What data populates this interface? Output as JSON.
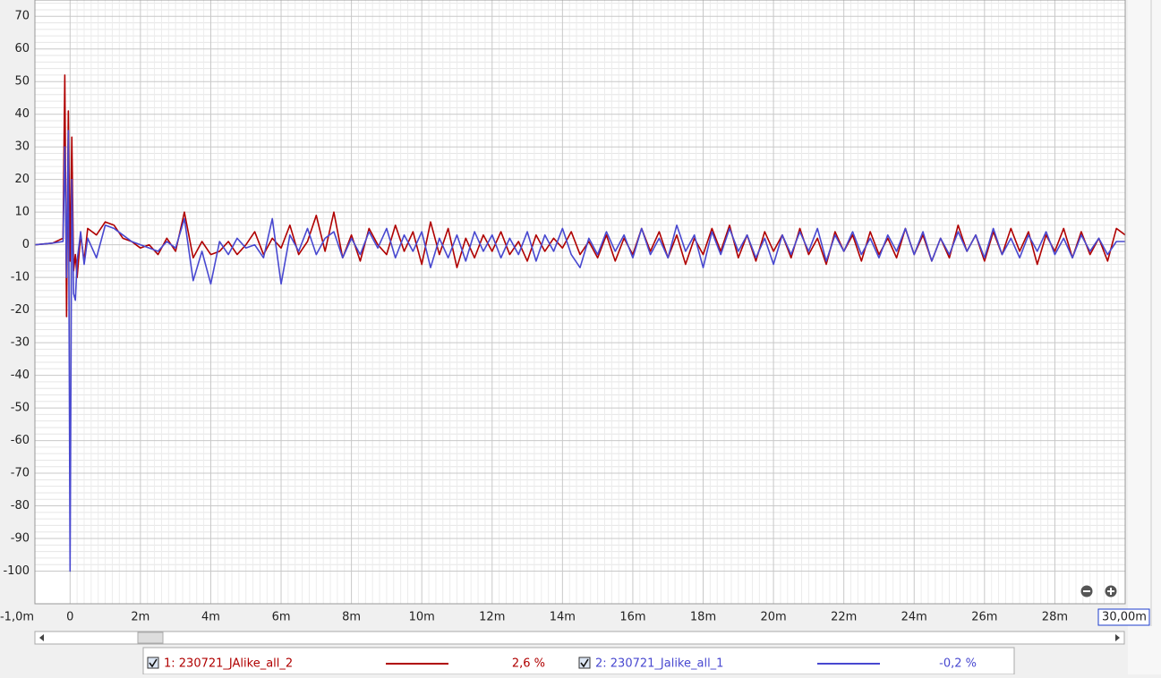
{
  "chart_data": {
    "type": "line",
    "x": [
      -1,
      -0.5,
      -0.2,
      -0.15,
      -0.1,
      -0.05,
      0,
      0.05,
      0.1,
      0.15,
      0.2,
      0.3,
      0.4,
      0.5,
      0.75,
      1,
      1.25,
      1.5,
      1.75,
      2,
      2.25,
      2.5,
      2.75,
      3,
      3.25,
      3.5,
      3.75,
      4,
      4.25,
      4.5,
      4.75,
      5,
      5.25,
      5.5,
      5.75,
      6,
      6.25,
      6.5,
      6.75,
      7,
      7.25,
      7.5,
      7.75,
      8,
      8.25,
      8.5,
      8.75,
      9,
      9.25,
      9.5,
      9.75,
      10,
      10.25,
      10.5,
      10.75,
      11,
      11.25,
      11.5,
      11.75,
      12,
      12.25,
      12.5,
      12.75,
      13,
      13.25,
      13.5,
      13.75,
      14,
      14.25,
      14.5,
      14.75,
      15,
      15.25,
      15.5,
      15.75,
      16,
      16.25,
      16.5,
      16.75,
      17,
      17.25,
      17.5,
      17.75,
      18,
      18.25,
      18.5,
      18.75,
      19,
      19.25,
      19.5,
      19.75,
      20,
      20.25,
      20.5,
      20.75,
      21,
      21.25,
      21.5,
      21.75,
      22,
      22.25,
      22.5,
      22.75,
      23,
      23.25,
      23.5,
      23.75,
      24,
      24.25,
      24.5,
      24.75,
      25,
      25.25,
      25.5,
      25.75,
      26,
      26.25,
      26.5,
      26.75,
      27,
      27.25,
      27.5,
      27.75,
      28,
      28.25,
      28.5,
      28.75,
      29,
      29.25,
      29.5,
      29.75,
      30
    ],
    "series": [
      {
        "name": "1: 230721_JAlike_all_2",
        "readout": "2,6 %",
        "color": "#b00000",
        "values": [
          0,
          0.5,
          2,
          52,
          -22,
          41,
          -5,
          33,
          -8,
          -3,
          -10,
          3,
          -5,
          5,
          3,
          7,
          6,
          2,
          1,
          -1,
          0,
          -3,
          2,
          -2,
          10,
          -4,
          1,
          -3,
          -2,
          1,
          -3,
          0,
          4,
          -3,
          2,
          -1,
          6,
          -3,
          1,
          9,
          -2,
          10,
          -4,
          3,
          -5,
          5,
          0,
          -3,
          6,
          -2,
          4,
          -6,
          7,
          -3,
          5,
          -7,
          2,
          -4,
          3,
          -2,
          4,
          -3,
          1,
          -5,
          3,
          -2,
          2,
          -1,
          4,
          -3,
          1,
          -4,
          3,
          -5,
          2,
          -3,
          5,
          -2,
          4,
          -4,
          3,
          -6,
          2,
          -3,
          5,
          -2,
          6,
          -4,
          3,
          -5,
          4,
          -2,
          3,
          -4,
          5,
          -3,
          2,
          -6,
          4,
          -2,
          3,
          -5,
          4,
          -3,
          2,
          -4,
          5,
          -3,
          3,
          -5,
          2,
          -4,
          6,
          -2,
          3,
          -5,
          4,
          -3,
          5,
          -2,
          4,
          -6,
          3,
          -2,
          5,
          -4,
          4,
          -3,
          2,
          -5,
          5,
          3
        ]
      },
      {
        "name": "2: 230721_Jalike_all_1",
        "readout": "-0,2 %",
        "color": "#4848d0",
        "values": [
          0,
          0.5,
          1,
          30,
          -10,
          35,
          -100,
          20,
          -15,
          -17,
          -5,
          4,
          -6,
          2,
          -4,
          6,
          5,
          3,
          1,
          0,
          -1,
          -2,
          1,
          -1,
          8,
          -11,
          -2,
          -12,
          1,
          -3,
          2,
          -1,
          0,
          -4,
          8,
          -12,
          3,
          -2,
          5,
          -3,
          2,
          4,
          -4,
          2,
          -3,
          4,
          -1,
          5,
          -4,
          3,
          -2,
          4,
          -7,
          2,
          -4,
          3,
          -5,
          4,
          -2,
          3,
          -4,
          2,
          -3,
          4,
          -5,
          3,
          -2,
          5,
          -3,
          -7,
          2,
          -3,
          4,
          -2,
          3,
          -4,
          5,
          -3,
          2,
          -4,
          6,
          -2,
          3,
          -7,
          4,
          -3,
          5,
          -2,
          3,
          -4,
          2,
          -6,
          3,
          -3,
          4,
          -2,
          5,
          -5,
          3,
          -2,
          4,
          -3,
          2,
          -4,
          3,
          -2,
          5,
          -3,
          4,
          -5,
          2,
          -3,
          4,
          -2,
          3,
          -4,
          5,
          -3,
          2,
          -4,
          3,
          -2,
          4,
          -3,
          2,
          -4,
          3,
          -2,
          2,
          -3,
          1,
          1
        ]
      }
    ],
    "xlim": [
      -1,
      30
    ],
    "ylim": [
      -110,
      75
    ],
    "xticks": [
      {
        "value": -1,
        "label": "-1,0m"
      },
      0,
      {
        "value": 2,
        "label": "2m"
      },
      {
        "value": 4,
        "label": "4m"
      },
      {
        "value": 6,
        "label": "6m"
      },
      {
        "value": 8,
        "label": "8m"
      },
      {
        "value": 10,
        "label": "10m"
      },
      {
        "value": 12,
        "label": "12m"
      },
      {
        "value": 14,
        "label": "14m"
      },
      {
        "value": 16,
        "label": "16m"
      },
      {
        "value": 18,
        "label": "18m"
      },
      {
        "value": 20,
        "label": "20m"
      },
      {
        "value": 22,
        "label": "22m"
      },
      {
        "value": 24,
        "label": "24m"
      },
      {
        "value": 26,
        "label": "26m"
      },
      {
        "value": 28,
        "label": "28m"
      },
      {
        "value": 30,
        "label": "30,00m"
      }
    ],
    "yticks": [
      -100,
      -90,
      -80,
      -70,
      -60,
      -50,
      -40,
      -30,
      -20,
      -10,
      0,
      10,
      20,
      30,
      40,
      50,
      60,
      70
    ],
    "grid": true,
    "minor_grid": true
  }
}
